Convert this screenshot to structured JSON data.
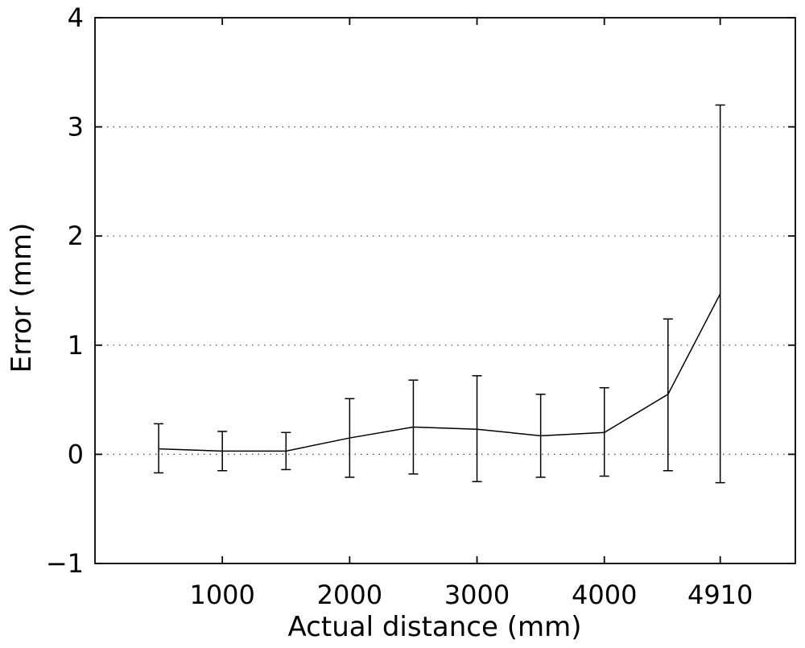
{
  "chart_data": {
    "type": "line",
    "title": "",
    "xlabel": "Actual distance (mm)",
    "ylabel": "Error (mm)",
    "xlim": [
      0,
      5500
    ],
    "ylim": [
      -1,
      4
    ],
    "x_ticks": [
      1000,
      2000,
      3000,
      4000,
      4910
    ],
    "x_tick_labels": [
      "1000",
      "2000",
      "3000",
      "4000",
      "4910"
    ],
    "y_ticks": [
      -1,
      0,
      1,
      2,
      3,
      4
    ],
    "y_tick_labels": [
      "−1",
      "0",
      "1",
      "2",
      "3",
      "4"
    ],
    "grid": "horizontal-dotted",
    "series": [
      {
        "x": [
          500,
          1000,
          1500,
          2000,
          2500,
          3000,
          3500,
          4000,
          4500,
          4910
        ],
        "values": [
          0.05,
          0.03,
          0.03,
          0.15,
          0.25,
          0.23,
          0.17,
          0.2,
          0.55,
          1.47
        ],
        "err_low": [
          -0.17,
          -0.15,
          -0.14,
          -0.21,
          -0.18,
          -0.25,
          -0.21,
          -0.2,
          -0.15,
          -0.26
        ],
        "err_high": [
          0.28,
          0.21,
          0.2,
          0.51,
          0.68,
          0.72,
          0.55,
          0.61,
          1.24,
          3.2
        ]
      }
    ]
  }
}
